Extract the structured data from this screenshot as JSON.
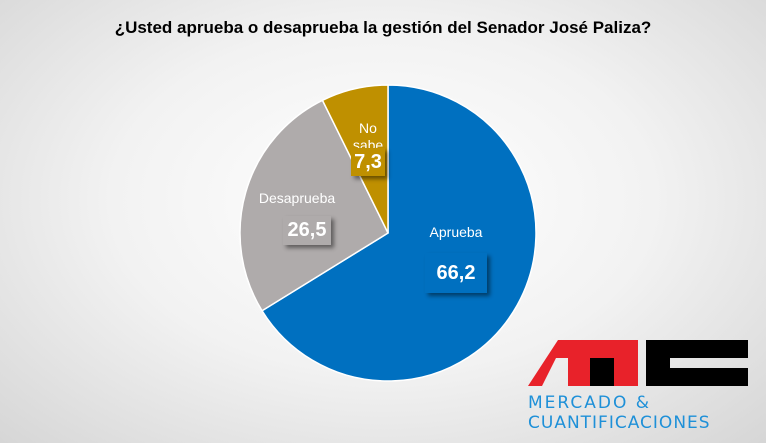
{
  "chart_data": {
    "type": "pie",
    "title": "¿Usted aprueba o desaprueba la gestión del Senador José Paliza?",
    "slices": [
      {
        "label": "Aprueba",
        "value": 66.2,
        "display": "66,2",
        "color": "#0070C0"
      },
      {
        "label": "Desaprueba",
        "value": 26.5,
        "display": "26,5",
        "color": "#AFABAB"
      },
      {
        "label": "No sabe",
        "value": 7.3,
        "display": "7,3",
        "color": "#BF9000"
      }
    ],
    "start_angle": "top, clockwise"
  },
  "logo": {
    "mark": "MC",
    "line1": "MERCADO &",
    "line2": "CUANTIFICACIONES"
  }
}
